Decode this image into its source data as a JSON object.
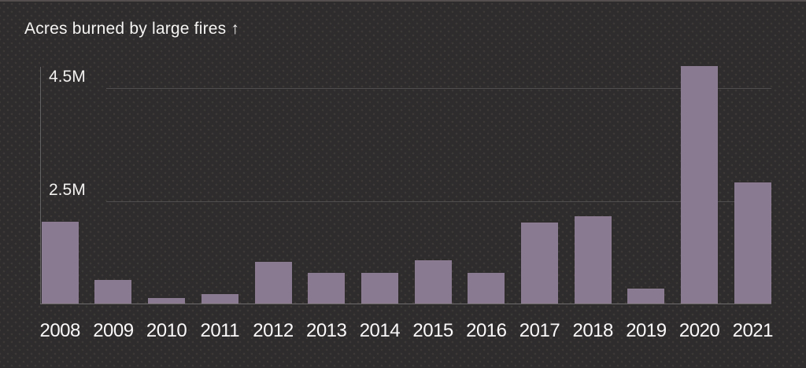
{
  "page": {
    "background_color": "#2e2c2c",
    "top_border_color": "#544f4e"
  },
  "chart_data": {
    "type": "bar",
    "title": "Acres burned by large fires ↑",
    "categories": [
      "2008",
      "2009",
      "2010",
      "2011",
      "2012",
      "2013",
      "2014",
      "2015",
      "2016",
      "2017",
      "2018",
      "2019",
      "2020",
      "2021"
    ],
    "values": [
      2.01,
      0.59,
      0.13,
      0.23,
      1.02,
      0.76,
      0.75,
      1.07,
      0.76,
      1.99,
      2.15,
      0.37,
      5.85,
      2.98
    ],
    "values_unit": "millions of acres",
    "xlabel": "",
    "ylabel": "",
    "yticks": [
      {
        "label": "2.5M",
        "value": 2.5
      },
      {
        "label": "4.5M",
        "value": 4.5
      }
    ],
    "ylim": [
      0,
      5.85
    ],
    "grid": "horizontal-lines-at-yticks",
    "legend": "none",
    "colors": {
      "bar": "#8a7a91",
      "background": "#2e2c2c",
      "text": "#f6f4f3",
      "gridline": "rgba(255,255,255,0.16)",
      "axis": "rgba(255,255,255,0.28)"
    }
  }
}
